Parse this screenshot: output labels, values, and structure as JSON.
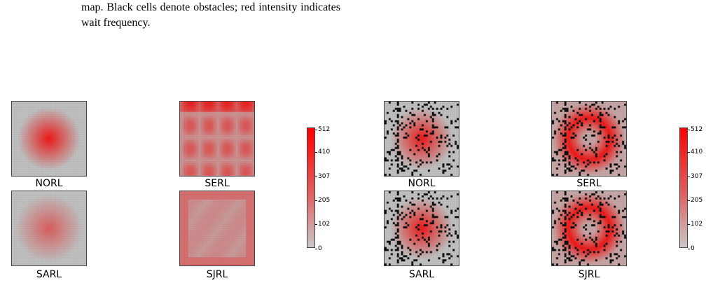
{
  "caption": "map. Black cells denote obstacles; red intensity indicates wait frequency.",
  "chart_data": [
    {
      "type": "heatmap",
      "grid": "no obstacles",
      "panels": [
        {
          "name": "NORL",
          "pattern": "centered"
        },
        {
          "name": "SERL",
          "pattern": "edges"
        },
        {
          "name": "SARL",
          "pattern": "centered-faint"
        },
        {
          "name": "SJRL",
          "pattern": "border"
        }
      ],
      "colorbar": {
        "ticks": [
          "512",
          "410",
          "307",
          "205",
          "102",
          "0"
        ],
        "min": 0,
        "max": 512
      }
    },
    {
      "type": "heatmap",
      "grid": "with obstacles",
      "panels": [
        {
          "name": "NORL",
          "pattern": "centered"
        },
        {
          "name": "SERL",
          "pattern": "ring"
        },
        {
          "name": "SARL",
          "pattern": "centered"
        },
        {
          "name": "SJRL",
          "pattern": "ring"
        }
      ],
      "colorbar": {
        "ticks": [
          "512",
          "410",
          "307",
          "205",
          "102",
          "0"
        ],
        "min": 0,
        "max": 512
      }
    }
  ],
  "colors": {
    "obstacle": "#000000",
    "empty": "#c8c8c8",
    "max": "#ff0000"
  }
}
